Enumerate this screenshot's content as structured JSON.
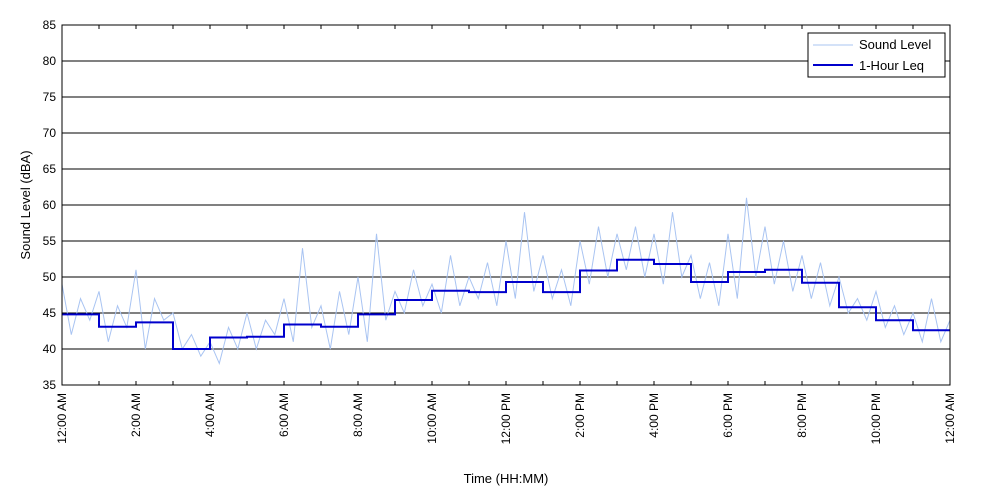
{
  "chart_data": {
    "type": "line",
    "xlabel": "Time (HH:MM)",
    "ylabel": "Sound Level (dBA)",
    "ylim": [
      35,
      85
    ],
    "xlim_hours": [
      0,
      24
    ],
    "yticks": [
      35,
      40,
      45,
      50,
      55,
      60,
      65,
      70,
      75,
      80,
      85
    ],
    "xticks": [
      {
        "hour": 0,
        "label": "12:00 AM"
      },
      {
        "hour": 2,
        "label": "2:00 AM"
      },
      {
        "hour": 4,
        "label": "4:00 AM"
      },
      {
        "hour": 6,
        "label": "6:00 AM"
      },
      {
        "hour": 8,
        "label": "8:00 AM"
      },
      {
        "hour": 10,
        "label": "10:00 AM"
      },
      {
        "hour": 12,
        "label": "12:00 PM"
      },
      {
        "hour": 14,
        "label": "2:00 PM"
      },
      {
        "hour": 16,
        "label": "4:00 PM"
      },
      {
        "hour": 18,
        "label": "6:00 PM"
      },
      {
        "hour": 20,
        "label": "8:00 PM"
      },
      {
        "hour": 22,
        "label": "10:00 PM"
      },
      {
        "hour": 24,
        "label": "12:00 AM"
      }
    ],
    "grid": "horizontal",
    "legend_position": "top-right",
    "series": [
      {
        "name": "Sound Level",
        "color": "#a9c4f2",
        "x_hours": [
          0,
          0.25,
          0.5,
          0.75,
          1,
          1.25,
          1.5,
          1.75,
          2,
          2.25,
          2.5,
          2.75,
          3,
          3.25,
          3.5,
          3.75,
          4,
          4.25,
          4.5,
          4.75,
          5,
          5.25,
          5.5,
          5.75,
          6,
          6.25,
          6.5,
          6.75,
          7,
          7.25,
          7.5,
          7.75,
          8,
          8.25,
          8.5,
          8.75,
          9,
          9.25,
          9.5,
          9.75,
          10,
          10.25,
          10.5,
          10.75,
          11,
          11.25,
          11.5,
          11.75,
          12,
          12.25,
          12.5,
          12.75,
          13,
          13.25,
          13.5,
          13.75,
          14,
          14.25,
          14.5,
          14.75,
          15,
          15.25,
          15.5,
          15.75,
          16,
          16.25,
          16.5,
          16.75,
          17,
          17.25,
          17.5,
          17.75,
          18,
          18.25,
          18.5,
          18.75,
          19,
          19.25,
          19.5,
          19.75,
          20,
          20.25,
          20.5,
          20.75,
          21,
          21.25,
          21.5,
          21.75,
          22,
          22.25,
          22.5,
          22.75,
          23,
          23.25,
          23.5,
          23.75,
          24
        ],
        "values": [
          49,
          42,
          47,
          44,
          48,
          41,
          46,
          43,
          51,
          40,
          47,
          44,
          45,
          40,
          42,
          39,
          41,
          38,
          43,
          40,
          45,
          40,
          44,
          42,
          47,
          41,
          54,
          43,
          46,
          40,
          48,
          42,
          50,
          41,
          56,
          44,
          48,
          45,
          51,
          46,
          49,
          45,
          53,
          46,
          50,
          47,
          52,
          46,
          55,
          47,
          59,
          48,
          53,
          47,
          51,
          46,
          55,
          49,
          57,
          50,
          56,
          51,
          57,
          50,
          56,
          49,
          59,
          50,
          53,
          47,
          52,
          46,
          56,
          47,
          61,
          50,
          57,
          49,
          55,
          48,
          53,
          47,
          52,
          46,
          50,
          45,
          47,
          44,
          48,
          43,
          46,
          42,
          45,
          41,
          47,
          41,
          44
        ]
      },
      {
        "name": "1-Hour Leq",
        "color": "#0000cc",
        "step": true,
        "x_hours": [
          0,
          1,
          2,
          3,
          4,
          5,
          6,
          7,
          8,
          9,
          10,
          11,
          12,
          13,
          14,
          15,
          16,
          17,
          18,
          19,
          20,
          21,
          22,
          23
        ],
        "values": [
          44.8,
          43.1,
          43.7,
          40.0,
          41.6,
          41.7,
          43.4,
          43.1,
          44.8,
          46.8,
          48.1,
          47.9,
          49.3,
          47.9,
          50.9,
          52.4,
          51.8,
          49.3,
          50.7,
          51.0,
          49.2,
          45.8,
          44.0,
          42.6
        ]
      }
    ]
  }
}
